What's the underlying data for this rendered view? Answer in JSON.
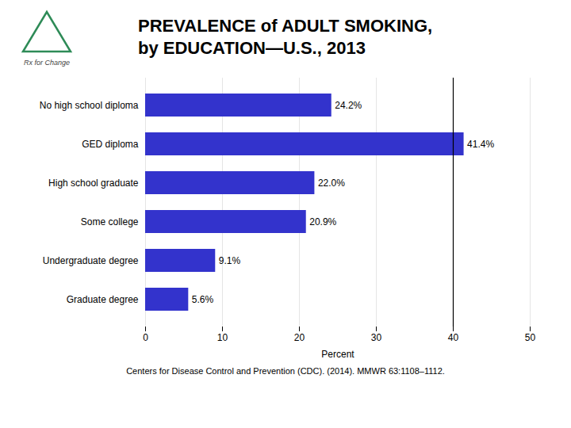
{
  "chart_data": {
    "type": "bar",
    "orientation": "horizontal",
    "title": "PREVALENCE of ADULT SMOKING,",
    "subtitle": "by EDUCATION—U.S., 2013",
    "caption": "Centers for Disease Control and Prevention (CDC). (2014). MMWR 63:1108–1112.",
    "annotations": [
      "Rx for Change"
    ],
    "categories": [
      "No high school diploma",
      "GED diploma",
      "High school graduate",
      "Some college",
      "Undergraduate degree",
      "Graduate degree"
    ],
    "values": [
      24.2,
      41.4,
      22.0,
      20.9,
      9.1,
      5.6
    ],
    "value_labels": [
      "24.2%",
      "41.4%",
      "22.0%",
      "20.9%",
      "9.1%",
      "5.6%"
    ],
    "data_labels": true,
    "color": "#3333cc",
    "xlabel": "Percent",
    "xlim": [
      0,
      50
    ],
    "xticks": [
      0,
      10,
      20,
      30,
      40,
      50
    ],
    "vline": 40,
    "grid": true
  }
}
